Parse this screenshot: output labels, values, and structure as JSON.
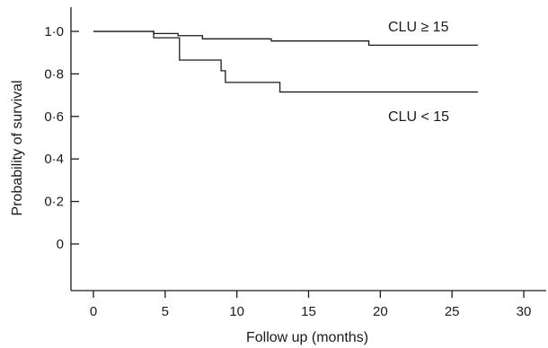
{
  "chart_data": {
    "type": "line",
    "step": true,
    "xlabel": "Follow up (months)",
    "ylabel": "Probability of survival",
    "xlim": [
      0,
      30
    ],
    "ylim": [
      0,
      1.0
    ],
    "xticks": [
      0,
      5,
      10,
      15,
      20,
      25,
      30
    ],
    "xtick_labels": [
      "0",
      "5",
      "10",
      "15",
      "20",
      "25",
      "30"
    ],
    "yticks": [
      0,
      0.2,
      0.4,
      0.6,
      0.8,
      1.0
    ],
    "ytick_labels": [
      "0",
      "0·2",
      "0·4",
      "0·6",
      "0·8",
      "1·0"
    ],
    "grid": false,
    "series": [
      {
        "name": "CLU ≥ 15",
        "x": [
          0,
          4.2,
          5.9,
          7.6,
          12.4,
          19.2,
          26.8
        ],
        "y": [
          1.0,
          0.99,
          0.98,
          0.965,
          0.955,
          0.935,
          0.935
        ]
      },
      {
        "name": "CLU < 15",
        "x": [
          0,
          4.2,
          6.0,
          8.9,
          9.2,
          13.0,
          26.8
        ],
        "y": [
          1.0,
          0.97,
          0.865,
          0.815,
          0.76,
          0.715,
          0.715
        ]
      }
    ]
  }
}
